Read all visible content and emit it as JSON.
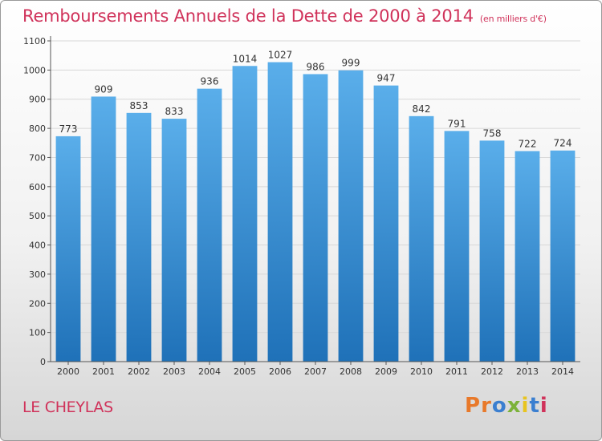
{
  "header": {
    "title": "Remboursements Annuels de la Dette de 2000 à 2014",
    "subtitle": "(en milliers d'€)"
  },
  "footer": {
    "commune": "LE CHEYLAS",
    "logo_text": "Proxiti"
  },
  "colors": {
    "title": "#d0325a",
    "bar_top": "#5aaeea",
    "bar_bottom": "#1f71b8",
    "grid": "#d8d8d8"
  },
  "chart_data": {
    "type": "bar",
    "title": "Remboursements Annuels de la Dette de 2000 à 2014",
    "subtitle": "(en milliers d'€)",
    "xlabel": "",
    "ylabel": "",
    "categories": [
      "2000",
      "2001",
      "2002",
      "2003",
      "2004",
      "2005",
      "2006",
      "2007",
      "2008",
      "2009",
      "2010",
      "2011",
      "2012",
      "2013",
      "2014"
    ],
    "values": [
      773,
      909,
      853,
      833,
      936,
      1014,
      1027,
      986,
      999,
      947,
      842,
      791,
      758,
      722,
      724
    ],
    "ylim": [
      0,
      1100
    ],
    "yticks": [
      0,
      100,
      200,
      300,
      400,
      500,
      600,
      700,
      800,
      900,
      1000,
      1100
    ],
    "grid": true,
    "legend": "none"
  }
}
